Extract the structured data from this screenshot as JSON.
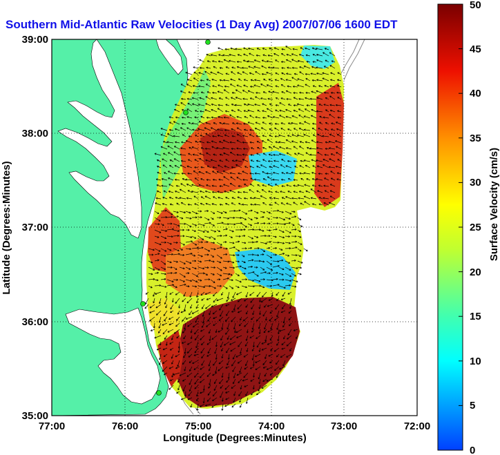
{
  "title": "Southern Mid-Atlantic Raw Velocities (1 Day Avg) 2007/07/06 1600 EDT",
  "xlabel": "Longitude (Degrees:Minutes)",
  "ylabel": "Latitude (Degrees:Minutes)",
  "x_ticks": [
    "77:00",
    "76:00",
    "75:00",
    "74:00",
    "73:00",
    "72:00"
  ],
  "y_ticks": [
    "39:00",
    "38:00",
    "37:00",
    "36:00",
    "35:00"
  ],
  "colorbar": {
    "label": "Surface Velocity (cm/s)",
    "ticks": [
      "0",
      "5",
      "10",
      "15",
      "20",
      "25",
      "30",
      "35",
      "40",
      "45",
      "50"
    ],
    "range": [
      0,
      50
    ]
  },
  "colors": {
    "land": "#55f0a8",
    "title": "#1010e8",
    "station": "#20e020"
  }
}
